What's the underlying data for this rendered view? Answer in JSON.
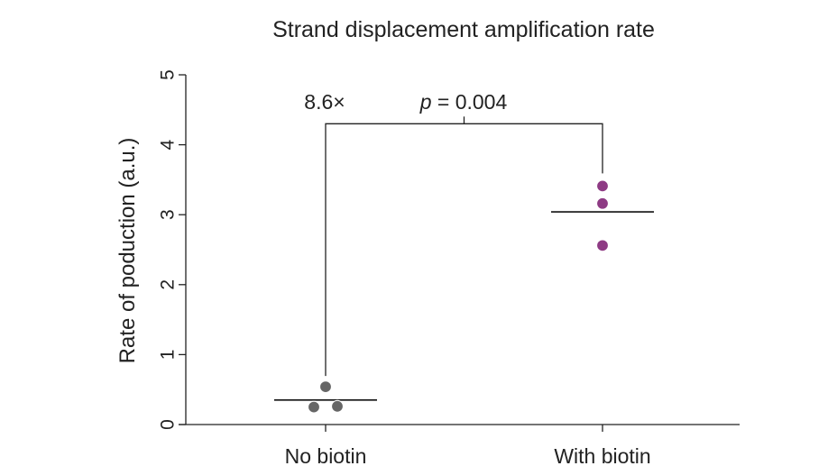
{
  "chart_data": {
    "type": "scatter",
    "title": "Strand displacement amplification rate",
    "xlabel": "",
    "ylabel": "Rate of poduction (a.u.)",
    "ylim": [
      0,
      5
    ],
    "yticks": [
      0,
      1,
      2,
      3,
      4,
      5
    ],
    "ytick_labels": [
      "0",
      "1",
      "2",
      "3",
      "4",
      "5"
    ],
    "grid": false,
    "categories": [
      "No biotin",
      "With biotin"
    ],
    "series": [
      {
        "category": "No biotin",
        "color": "#666666",
        "points": [
          {
            "offset": 0.0,
            "y": 0.54
          },
          {
            "offset": -0.1,
            "y": 0.25
          },
          {
            "offset": 0.1,
            "y": 0.26
          }
        ],
        "mean": 0.35
      },
      {
        "category": "With biotin",
        "color": "#8e3b84",
        "points": [
          {
            "offset": 0.0,
            "y": 3.41
          },
          {
            "offset": 0.0,
            "y": 3.16
          },
          {
            "offset": 0.0,
            "y": 2.56
          }
        ],
        "mean": 3.04
      }
    ],
    "annotation": {
      "fold_change": "8.6×",
      "p_prefix": "p",
      "p_suffix": " = 0.004",
      "bracket_y": 4.3
    }
  }
}
